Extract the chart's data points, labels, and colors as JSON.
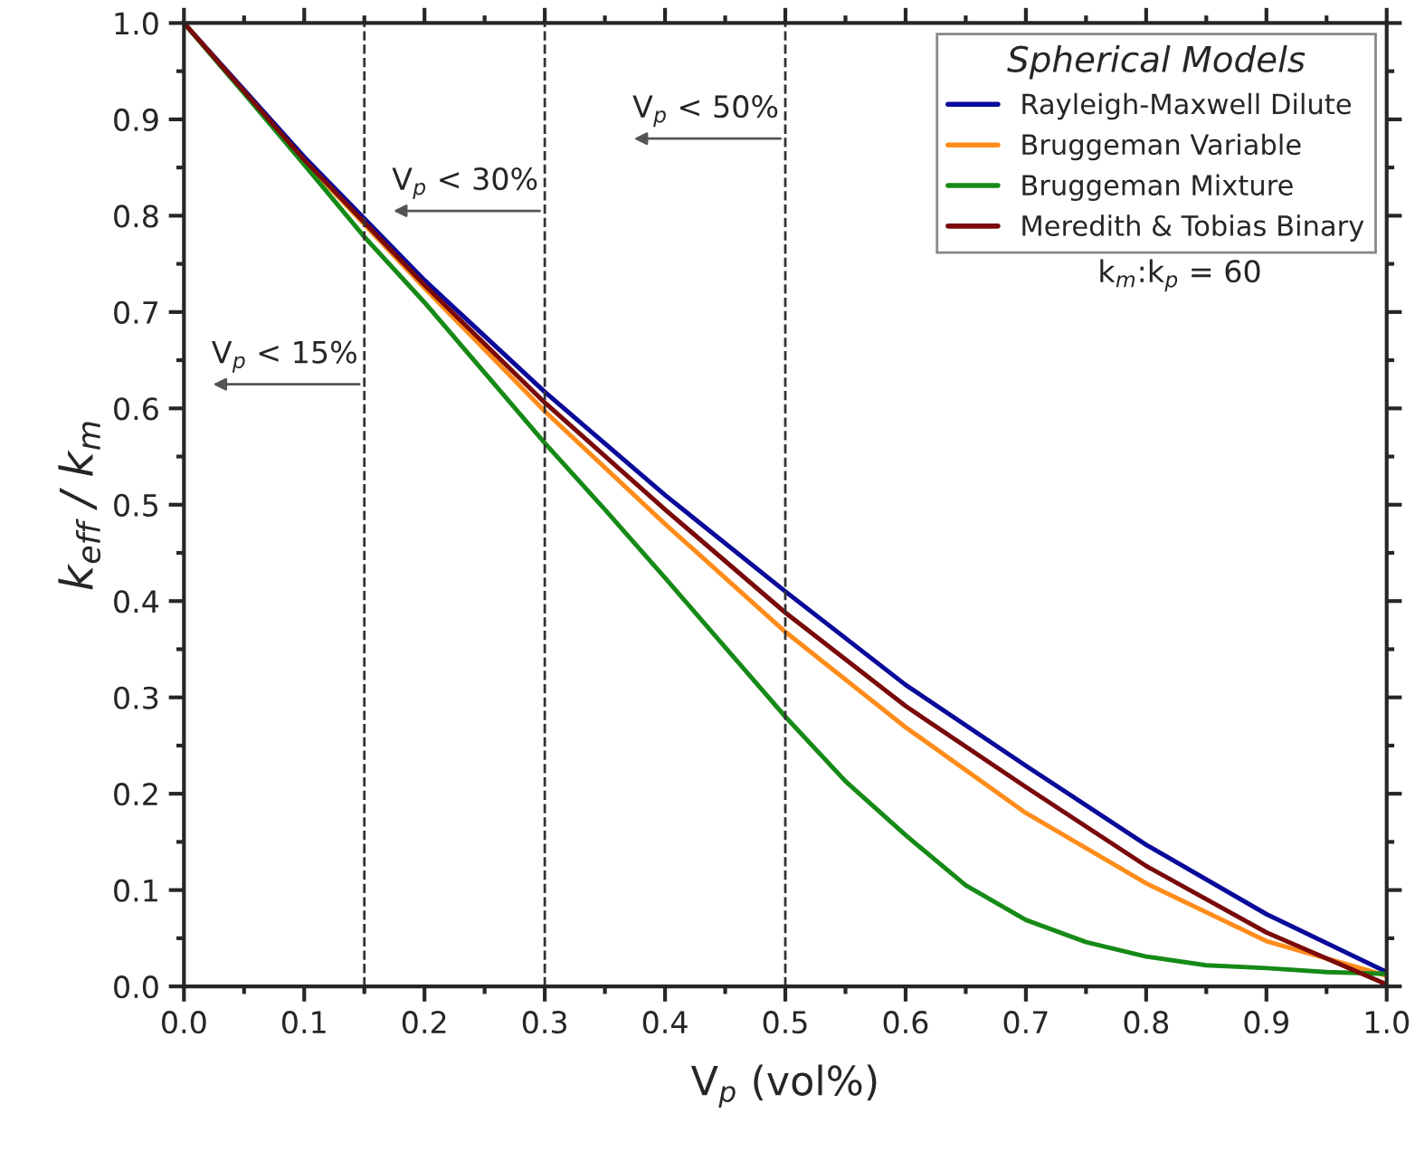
{
  "chart_data": {
    "type": "line",
    "xlabel": "V$_{p}$ (vol%)",
    "ylabel": "k$_{eff}$ / k$_{m}$",
    "legend_title": "Spherical Models",
    "x": [
      0.0,
      0.1,
      0.2,
      0.3,
      0.4,
      0.5,
      0.6,
      0.7,
      0.8,
      0.9,
      1.0
    ],
    "series": [
      {
        "name": "Rayleigh-Maxwell Dilute",
        "color": "#0a0a9a",
        "values": [
          1.0,
          0.861,
          0.733,
          0.617,
          0.51,
          0.41,
          0.313,
          0.229,
          0.147,
          0.075,
          0.015
        ]
      },
      {
        "name": "Bruggeman Variable",
        "color": "#ff8c1a",
        "values": [
          1.0,
          0.857,
          0.725,
          0.597,
          0.48,
          0.368,
          0.269,
          0.18,
          0.107,
          0.047,
          0.011
        ]
      },
      {
        "name": "Bruggeman Mixture",
        "color": "#168a16",
        "x": [
          0.0,
          0.05,
          0.1,
          0.15,
          0.2,
          0.25,
          0.3,
          0.35,
          0.4,
          0.45,
          0.5,
          0.55,
          0.6,
          0.65,
          0.7,
          0.75,
          0.8,
          0.85,
          0.9,
          0.95,
          1.0
        ],
        "values": [
          1.0,
          0.927,
          0.853,
          0.778,
          0.71,
          0.637,
          0.564,
          0.495,
          0.424,
          0.352,
          0.28,
          0.213,
          0.157,
          0.105,
          0.069,
          0.046,
          0.031,
          0.022,
          0.019,
          0.015,
          0.013
        ]
      },
      {
        "name": "Meredith & Tobias Binary",
        "color": "#7a0a0a",
        "values": [
          1.0,
          0.858,
          0.728,
          0.606,
          0.495,
          0.388,
          0.291,
          0.207,
          0.125,
          0.056,
          0.002
        ]
      }
    ],
    "annotations": [
      "k$_{m}$:k$_{p}$ = 60"
    ],
    "ref_lines": [
      {
        "axis": "x",
        "value": 0.15,
        "label": "V$_{p}$ < 15%",
        "line_style": "dashed",
        "color": "#333333"
      },
      {
        "axis": "x",
        "value": 0.3,
        "label": "V$_{p}$ < 30%",
        "line_style": "dashed",
        "color": "#333333"
      },
      {
        "axis": "x",
        "value": 0.5,
        "label": "V$_{p}$ < 50%",
        "line_style": "dashed",
        "color": "#333333"
      }
    ],
    "xlim": [
      0.0,
      1.0
    ],
    "ylim": [
      0.0,
      1.0
    ],
    "xticks": [
      {
        "value": 0,
        "label": "0.0"
      },
      0.1,
      0.2,
      0.3,
      0.4,
      0.5,
      0.6,
      0.7,
      0.8,
      0.9,
      {
        "value": 1,
        "label": "1.0"
      }
    ],
    "yticks": [
      {
        "value": 0,
        "label": "0.0"
      },
      0.1,
      0.2,
      0.3,
      0.4,
      0.5,
      0.6,
      0.7,
      0.8,
      0.9,
      {
        "value": 1,
        "label": "1.0"
      }
    ],
    "legend": "top right",
    "grid": false,
    "marker": "none",
    "line_style": "solid"
  }
}
